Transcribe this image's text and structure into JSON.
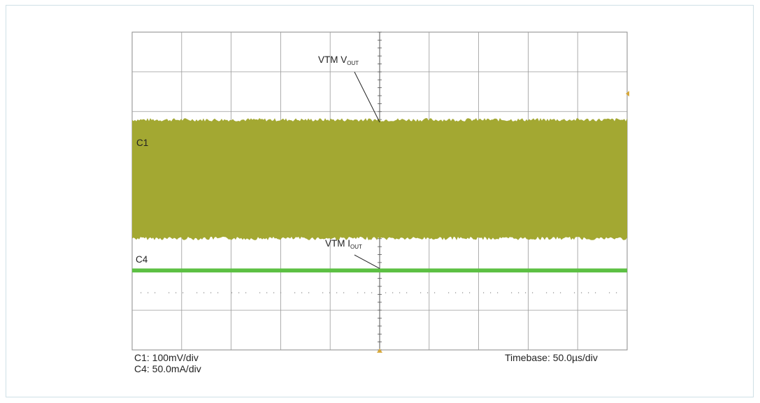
{
  "chart_data": {
    "type": "line",
    "title": "",
    "divisions": {
      "horizontal": 10,
      "vertical": 8
    },
    "grid": true,
    "series": [
      {
        "channel_label": "C1",
        "annotation_main": "VTM V",
        "annotation_sub": "OUT",
        "scale": "C1: 100mV/div",
        "color": "#a3a832",
        "description_visible": "ripple band",
        "band_top_div": 5.75,
        "band_bottom_div": 2.85
      },
      {
        "channel_label": "C4",
        "annotation_main": "VTM I",
        "annotation_sub": "OUT",
        "scale": "C4: 50.0mA/div",
        "color": "#5cc043",
        "band_top_div": 2.05,
        "band_bottom_div": 1.95
      }
    ],
    "timebase": "Timebase: 50.0µs/div",
    "trigger_marker_color": "#d7a83a"
  }
}
